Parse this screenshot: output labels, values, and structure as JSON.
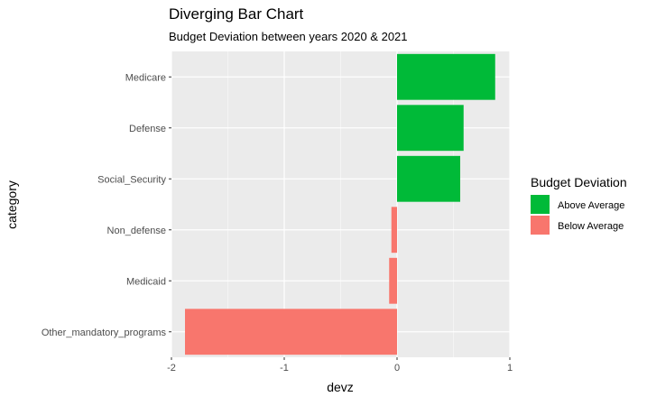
{
  "chart_data": {
    "type": "bar",
    "orientation": "horizontal",
    "title": "Diverging Bar Chart",
    "subtitle": "Budget Deviation between years 2020 & 2021",
    "xlabel": "devz",
    "ylabel": "category",
    "xlim": [
      -2,
      1
    ],
    "x_ticks": [
      -2,
      -1,
      0,
      1
    ],
    "x_tick_labels": [
      "-2",
      "-1",
      "0",
      "1"
    ],
    "grid": true,
    "legend": {
      "title": "Budget Deviation",
      "position": "right",
      "entries": [
        {
          "label": "Above Average",
          "color": "#00BA38"
        },
        {
          "label": "Below Average",
          "color": "#F8766D"
        }
      ]
    },
    "categories": [
      "Medicare",
      "Defense",
      "Social_Security",
      "Non_defense",
      "Medicaid",
      "Other_mandatory_programs"
    ],
    "values": [
      0.87,
      0.59,
      0.56,
      -0.05,
      -0.07,
      -1.88
    ],
    "groups": [
      "Above Average",
      "Above Average",
      "Above Average",
      "Below Average",
      "Below Average",
      "Below Average"
    ]
  },
  "colors": {
    "panel_background": "#EBEBEB",
    "grid_major": "#FFFFFF",
    "text": "#000000",
    "axis_text": "#4D4D4D",
    "tick": "#333333"
  }
}
